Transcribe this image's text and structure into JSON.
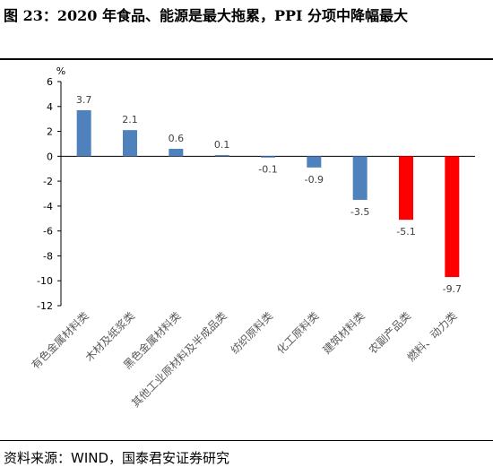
{
  "header": {
    "title": "图 23：2020 年食品、能源是最大拖累，PPI 分项中降幅最大"
  },
  "footer": {
    "source": "资料来源：WIND，国泰君安证券研究"
  },
  "chart_data": {
    "type": "bar",
    "ylabel": "%",
    "ylim": [
      -12,
      6
    ],
    "yticks": [
      6,
      4,
      2,
      0,
      -2,
      -4,
      -6,
      -8,
      -10,
      -12
    ],
    "categories": [
      "有色金属材料类",
      "木材及纸浆类",
      "黑色金属材料类",
      "其他工业原材料及半成品类",
      "纺织原料类",
      "化工原料类",
      "建筑材料类",
      "农副产品类",
      "燃料、动力类"
    ],
    "values": [
      3.7,
      2.1,
      0.6,
      0.1,
      -0.1,
      -0.9,
      -3.5,
      -5.1,
      -9.7
    ],
    "data_labels": [
      "3.7",
      "2.1",
      "0.6",
      "0.1",
      "-0.1",
      "-0.9",
      "-3.5",
      "-5.1",
      "-9.7"
    ],
    "colors": [
      "#4F81BD",
      "#4F81BD",
      "#4F81BD",
      "#4F81BD",
      "#4F81BD",
      "#4F81BD",
      "#4F81BD",
      "#FF0000",
      "#FF0000"
    ],
    "grid": false,
    "legend": "none"
  }
}
